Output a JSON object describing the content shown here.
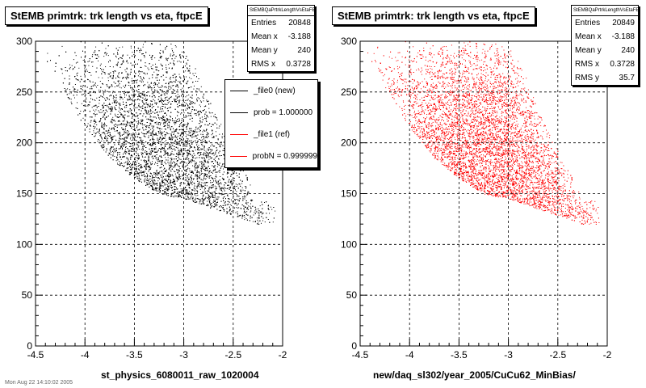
{
  "colors": {
    "left_points": "#000000",
    "right_points": "#ff0000",
    "legend_ref": "#ff0000"
  },
  "left": {
    "title": "StEMB primtrk: trk length vs eta, ftpcE",
    "xaxis_title": "st_physics_6080011_raw_1020004",
    "stats": {
      "name": "StEMBQaPrtrkLengthVsEtaFE",
      "rows": [
        {
          "label": "Entries",
          "value": "20848"
        },
        {
          "label": "Mean x",
          "value": "-3.188"
        },
        {
          "label": "Mean y",
          "value": "240"
        },
        {
          "label": "RMS x",
          "value": "0.3728"
        }
      ]
    },
    "legend": [
      {
        "label": "_file0 (new)",
        "color": "#000000"
      },
      {
        "label": "prob = 1.000000",
        "color": "#000000"
      },
      {
        "label": "_file1 (ref)",
        "color": "#ff0000"
      },
      {
        "label": "probN = 0.999999",
        "color": "#ff0000"
      }
    ]
  },
  "right": {
    "title": "StEMB primtrk: trk length vs eta, ftpcE",
    "xaxis_title": "new/daq_sl302/year_2005/CuCu62_MinBias/",
    "stats": {
      "name": "StEMBQaPrtrkLengthVsEtaFE",
      "rows": [
        {
          "label": "Entries",
          "value": "20849"
        },
        {
          "label": "Mean x",
          "value": "-3.188"
        },
        {
          "label": "Mean y",
          "value": "240"
        },
        {
          "label": "RMS x",
          "value": "0.3728"
        },
        {
          "label": "RMS y",
          "value": "35.7"
        }
      ]
    }
  },
  "footer": "Mon Aug 22 14:10:02 2005",
  "chart_data": [
    {
      "type": "scatter",
      "title": "StEMB primtrk: trk length vs eta, ftpcE",
      "xlabel": "st_physics_6080011_raw_1020004",
      "ylabel": "",
      "xlim": [
        -4.5,
        -2
      ],
      "ylim": [
        0,
        300
      ],
      "x_ticks": [
        "-4.5",
        "-4",
        "-3.5",
        "-3",
        "-2.5",
        "-2"
      ],
      "y_ticks": [
        "0",
        "50",
        "100",
        "150",
        "200",
        "250",
        "300"
      ],
      "grid": true,
      "series": [
        {
          "color": "#000000",
          "entries": 20848,
          "mean_x": -3.188,
          "mean_y": 240,
          "rms_x": 0.3728
        }
      ],
      "density_envelope": [
        {
          "x": -4.42,
          "y_low": 285,
          "y_high": 300
        },
        {
          "x": -4.25,
          "y_low": 255,
          "y_high": 300
        },
        {
          "x": -4.0,
          "y_low": 215,
          "y_high": 300
        },
        {
          "x": -3.75,
          "y_low": 185,
          "y_high": 300
        },
        {
          "x": -3.5,
          "y_low": 165,
          "y_high": 300
        },
        {
          "x": -3.25,
          "y_low": 150,
          "y_high": 300
        },
        {
          "x": -3.0,
          "y_low": 145,
          "y_high": 300
        },
        {
          "x": -2.85,
          "y_low": 140,
          "y_high": 270
        },
        {
          "x": -2.7,
          "y_low": 135,
          "y_high": 240
        },
        {
          "x": -2.55,
          "y_low": 130,
          "y_high": 205
        },
        {
          "x": -2.4,
          "y_low": 125,
          "y_high": 175
        },
        {
          "x": -2.25,
          "y_low": 120,
          "y_high": 145
        }
      ]
    },
    {
      "type": "scatter",
      "title": "StEMB primtrk: trk length vs eta, ftpcE",
      "xlabel": "new/daq_sl302/year_2005/CuCu62_MinBias/",
      "ylabel": "",
      "xlim": [
        -4.5,
        -2
      ],
      "ylim": [
        0,
        300
      ],
      "x_ticks": [
        "-4.5",
        "-4",
        "-3.5",
        "-3",
        "-2.5",
        "-2"
      ],
      "y_ticks": [
        "0",
        "50",
        "100",
        "150",
        "200",
        "250",
        "300"
      ],
      "grid": true,
      "series": [
        {
          "color": "#ff0000",
          "entries": 20849,
          "mean_x": -3.188,
          "mean_y": 240,
          "rms_x": 0.3728,
          "rms_y": 35.7
        }
      ],
      "density_envelope": [
        {
          "x": -4.42,
          "y_low": 285,
          "y_high": 300
        },
        {
          "x": -4.25,
          "y_low": 255,
          "y_high": 300
        },
        {
          "x": -4.0,
          "y_low": 215,
          "y_high": 300
        },
        {
          "x": -3.75,
          "y_low": 185,
          "y_high": 300
        },
        {
          "x": -3.5,
          "y_low": 165,
          "y_high": 300
        },
        {
          "x": -3.25,
          "y_low": 150,
          "y_high": 300
        },
        {
          "x": -3.0,
          "y_low": 145,
          "y_high": 300
        },
        {
          "x": -2.85,
          "y_low": 140,
          "y_high": 270
        },
        {
          "x": -2.7,
          "y_low": 135,
          "y_high": 240
        },
        {
          "x": -2.55,
          "y_low": 130,
          "y_high": 205
        },
        {
          "x": -2.4,
          "y_low": 125,
          "y_high": 175
        },
        {
          "x": -2.25,
          "y_low": 120,
          "y_high": 145
        }
      ]
    }
  ]
}
